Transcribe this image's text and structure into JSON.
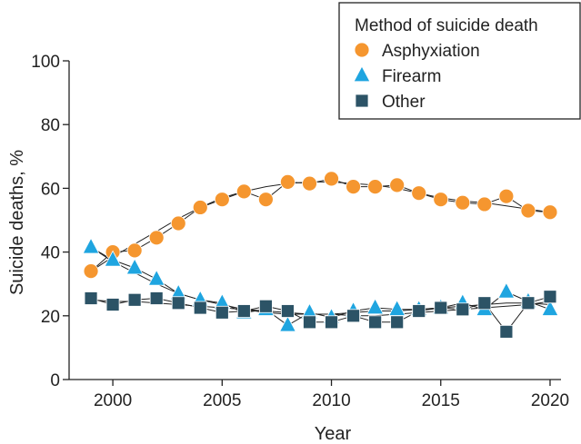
{
  "chart_data": {
    "type": "line",
    "xlabel": "Year",
    "ylabel": "Suicide deaths, %",
    "xlim": [
      1998,
      2020.5
    ],
    "ylim": [
      0,
      100
    ],
    "x_ticks": [
      "2000",
      "2005",
      "2010",
      "2015",
      "2020"
    ],
    "y_ticks": [
      "0",
      "20",
      "40",
      "60",
      "80",
      "100"
    ],
    "legend": {
      "title": "Method of suicide death",
      "placement": "top-right"
    },
    "grid": false,
    "x": [
      1999,
      2000,
      2001,
      2002,
      2003,
      2004,
      2005,
      2006,
      2007,
      2008,
      2009,
      2010,
      2011,
      2012,
      2013,
      2014,
      2015,
      2016,
      2017,
      2018,
      2019,
      2020
    ],
    "series": [
      {
        "name": "Asphyxiation",
        "marker": "circle",
        "color": "#F5962F",
        "values": [
          34,
          40,
          40.5,
          44.5,
          49,
          54,
          56.5,
          59,
          56.5,
          62,
          61.5,
          63,
          60.5,
          60.5,
          61,
          58.5,
          56.5,
          55.5,
          55,
          57.5,
          53,
          52.5
        ],
        "trend": [
          34,
          38.5,
          42.5,
          46.5,
          50.5,
          54,
          57,
          59,
          60.5,
          61.5,
          62,
          62,
          61.5,
          61,
          60,
          58.5,
          57,
          56,
          55.5,
          54.5,
          53.5,
          52.5
        ]
      },
      {
        "name": "Firearm",
        "marker": "triangle",
        "color": "#1FA5E0",
        "values": [
          41.5,
          37.5,
          35,
          31.5,
          27,
          25,
          24,
          21,
          22,
          17,
          21,
          19.5,
          21.5,
          22.5,
          22,
          22,
          22.5,
          24,
          22,
          27.5,
          24.5,
          22
        ],
        "trend": [
          41.5,
          37,
          33.5,
          30,
          27,
          25,
          23.5,
          22,
          21,
          20.5,
          20.5,
          20.5,
          21,
          21.5,
          21.5,
          22,
          22.5,
          23,
          23.5,
          24,
          24,
          23.5
        ]
      },
      {
        "name": "Other",
        "marker": "square",
        "color": "#2C5366",
        "values": [
          25.5,
          23.5,
          25,
          25.5,
          24,
          22.5,
          21,
          21.5,
          23,
          21.5,
          18,
          18,
          20,
          18,
          18,
          21.5,
          22.5,
          22,
          24,
          15,
          24,
          26
        ],
        "trend": [
          25,
          24.5,
          24.5,
          24,
          23.5,
          23,
          22.5,
          22,
          21.5,
          21,
          20.5,
          20.5,
          20,
          20,
          20.5,
          21,
          21.5,
          22,
          22.5,
          23,
          23.5,
          24.5
        ]
      }
    ]
  },
  "colors": {
    "axis": "#222222",
    "line": "#222222",
    "marker_outline": "#ffffff"
  }
}
